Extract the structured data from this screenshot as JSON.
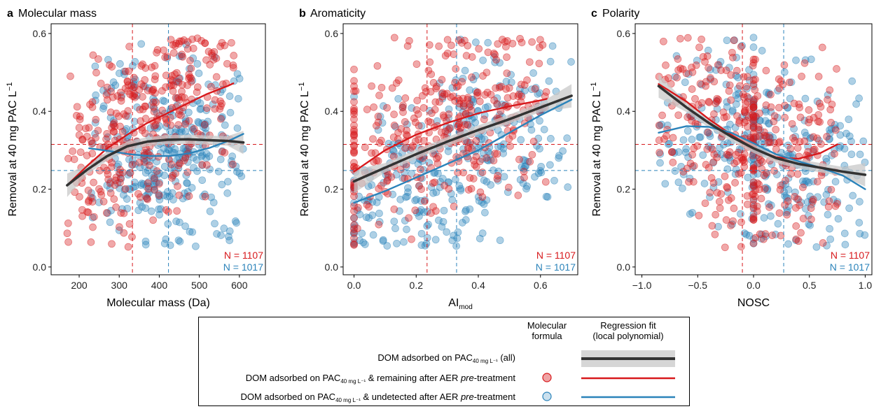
{
  "panels": [
    {
      "letter": "a",
      "title": "Molecular mass",
      "ylabel": "Removal at 40 mg PAC L",
      "ylabel_sup": "−1",
      "xlabel": "Molecular mass (Da)",
      "xlabel_sub": "",
      "xlim": [
        130,
        665
      ],
      "ylim": [
        -0.02,
        0.625
      ],
      "xticks": [
        200,
        300,
        400,
        500,
        600
      ],
      "xtick_labels": [
        "200",
        "300",
        "400",
        "500",
        "600"
      ],
      "yticks": [
        0.0,
        0.2,
        0.4,
        0.6
      ],
      "ytick_labels": [
        "0.0",
        "0.2",
        "0.4",
        "0.6"
      ],
      "x_range_red": [
        170,
        590
      ],
      "x_range_blue": [
        225,
        615
      ],
      "vline_red": 333,
      "vline_blue": 423,
      "n_red_label": "N = 1107",
      "n_blue_label": "N = 1017"
    },
    {
      "letter": "b",
      "title": "Aromaticity",
      "ylabel": "Removal at 40 mg PAC L",
      "ylabel_sup": "−1",
      "xlabel": "AI",
      "xlabel_sub": "mod",
      "xlim": [
        -0.035,
        0.72
      ],
      "ylim": [
        -0.02,
        0.625
      ],
      "xticks": [
        0.0,
        0.2,
        0.4,
        0.6
      ],
      "xtick_labels": [
        "0.0",
        "0.2",
        "0.4",
        "0.6"
      ],
      "yticks": [
        0.0,
        0.2,
        0.4,
        0.6
      ],
      "ytick_labels": [
        "0.0",
        "0.2",
        "0.4",
        "0.6"
      ],
      "x_range_red": [
        0.0,
        0.62
      ],
      "x_range_blue": [
        0.0,
        0.7
      ],
      "vline_red": 0.235,
      "vline_blue": 0.33,
      "n_red_label": "N = 1107",
      "n_blue_label": "N = 1017"
    },
    {
      "letter": "c",
      "title": "Polarity",
      "ylabel": "Removal at 40 mg PAC L",
      "ylabel_sup": "−1",
      "xlabel": "NOSC",
      "xlabel_sub": "",
      "xlim": [
        -1.06,
        1.06
      ],
      "ylim": [
        -0.02,
        0.625
      ],
      "xticks": [
        -1.0,
        -0.5,
        0.0,
        0.5,
        1.0
      ],
      "xtick_labels": [
        "−1.0",
        "−0.5",
        "0.0",
        "0.5",
        "1.0"
      ],
      "yticks": [
        0.0,
        0.2,
        0.4,
        0.6
      ],
      "ytick_labels": [
        "0.0",
        "0.2",
        "0.4",
        "0.6"
      ],
      "x_range_red": [
        -0.85,
        0.75
      ],
      "x_range_blue": [
        -0.85,
        1.0
      ],
      "vline_red": -0.1,
      "vline_blue": 0.27,
      "n_red_label": "N = 1107",
      "n_blue_label": "N = 1017"
    }
  ],
  "hline_red": 0.315,
  "hline_blue": 0.248,
  "colors": {
    "red": "#d7191c",
    "blue": "#2b83ba",
    "black": "#333333",
    "band": "#c8c8c8"
  },
  "chart_data": [
    {
      "type": "scatter",
      "title": "Molecular mass",
      "xlabel": "Molecular mass (Da)",
      "ylabel": "Removal at 40 mg PAC L−1",
      "xlim": [
        130,
        665
      ],
      "ylim": [
        0,
        0.62
      ],
      "series": [
        {
          "name": "DOM adsorbed on PAC40 mg L−1 & remaining after AER pre-treatment",
          "n": 1107,
          "fit_x": [
            170,
            220,
            270,
            320,
            370,
            420,
            470,
            520,
            570,
            585
          ],
          "fit_y": [
            0.21,
            0.26,
            0.305,
            0.34,
            0.37,
            0.395,
            0.42,
            0.445,
            0.465,
            0.472
          ]
        },
        {
          "name": "DOM adsorbed on PAC40 mg L−1 & undetected after AER pre-treatment",
          "n": 1017,
          "fit_x": [
            225,
            275,
            325,
            375,
            425,
            475,
            525,
            575,
            610
          ],
          "fit_y": [
            0.305,
            0.298,
            0.29,
            0.285,
            0.285,
            0.292,
            0.306,
            0.325,
            0.342
          ]
        },
        {
          "name": "DOM adsorbed on PAC40 mg L−1 (all)",
          "fit_x": [
            170,
            220,
            270,
            320,
            370,
            420,
            470,
            520,
            570,
            610
          ],
          "fit_y": [
            0.21,
            0.25,
            0.285,
            0.31,
            0.322,
            0.327,
            0.328,
            0.326,
            0.324,
            0.32
          ]
        }
      ]
    },
    {
      "type": "scatter",
      "title": "Aromaticity",
      "xlabel": "AImod",
      "ylabel": "Removal at 40 mg PAC L−1",
      "xlim": [
        -0.035,
        0.72
      ],
      "ylim": [
        0,
        0.62
      ],
      "series": [
        {
          "name": "DOM adsorbed on PAC40 mg L−1 & remaining after AER pre-treatment",
          "n": 1107,
          "fit_x": [
            0.0,
            0.1,
            0.2,
            0.3,
            0.4,
            0.5,
            0.6,
            0.62
          ],
          "fit_y": [
            0.245,
            0.3,
            0.34,
            0.37,
            0.395,
            0.413,
            0.428,
            0.432
          ]
        },
        {
          "name": "DOM adsorbed on PAC40 mg L−1 & undetected after AER pre-treatment",
          "n": 1017,
          "fit_x": [
            0.0,
            0.1,
            0.2,
            0.3,
            0.4,
            0.5,
            0.6,
            0.7
          ],
          "fit_y": [
            0.165,
            0.195,
            0.23,
            0.265,
            0.3,
            0.345,
            0.39,
            0.43
          ]
        },
        {
          "name": "DOM adsorbed on PAC40 mg L−1 (all)",
          "fit_x": [
            0.0,
            0.1,
            0.2,
            0.3,
            0.4,
            0.5,
            0.6,
            0.7
          ],
          "fit_y": [
            0.22,
            0.255,
            0.29,
            0.322,
            0.352,
            0.38,
            0.41,
            0.44
          ]
        }
      ]
    },
    {
      "type": "scatter",
      "title": "Polarity",
      "xlabel": "NOSC",
      "ylabel": "Removal at 40 mg PAC L−1",
      "xlim": [
        -1.06,
        1.06
      ],
      "ylim": [
        0,
        0.62
      ],
      "series": [
        {
          "name": "DOM adsorbed on PAC40 mg L−1 & remaining after AER pre-treatment",
          "n": 1107,
          "fit_x": [
            -0.85,
            -0.6,
            -0.4,
            -0.2,
            0.0,
            0.2,
            0.4,
            0.6,
            0.75
          ],
          "fit_y": [
            0.47,
            0.425,
            0.38,
            0.34,
            0.305,
            0.282,
            0.278,
            0.293,
            0.315
          ]
        },
        {
          "name": "DOM adsorbed on PAC40 mg L−1 & undetected after AER pre-treatment",
          "n": 1017,
          "fit_x": [
            -0.85,
            -0.6,
            -0.4,
            -0.2,
            0.0,
            0.2,
            0.4,
            0.6,
            0.8,
            1.0
          ],
          "fit_y": [
            0.345,
            0.362,
            0.36,
            0.345,
            0.318,
            0.29,
            0.272,
            0.255,
            0.235,
            0.2
          ]
        },
        {
          "name": "DOM adsorbed on PAC40 mg L−1 (all)",
          "fit_x": [
            -0.85,
            -0.6,
            -0.4,
            -0.2,
            0.0,
            0.2,
            0.4,
            0.6,
            0.8,
            1.0
          ],
          "fit_y": [
            0.465,
            0.41,
            0.37,
            0.335,
            0.305,
            0.28,
            0.265,
            0.255,
            0.245,
            0.237
          ]
        }
      ]
    }
  ],
  "legend": {
    "col_formula": [
      "Molecular",
      "formula"
    ],
    "col_fit": [
      "Regression fit",
      "(local polynomial)"
    ],
    "rows": [
      {
        "pre": "DOM adsorbed on PAC",
        "sub": "40 mg L⁻¹",
        "post": " (all)",
        "italic": "",
        "tail": ""
      },
      {
        "pre": "DOM adsorbed on PAC",
        "sub": "40 mg L⁻¹",
        "post": " & remaining after AER ",
        "italic": "pre",
        "tail": "-treatment"
      },
      {
        "pre": "DOM adsorbed on PAC",
        "sub": "40 mg L⁻¹",
        "post": " & undetected after AER ",
        "italic": "pre",
        "tail": "-treatment"
      }
    ]
  }
}
